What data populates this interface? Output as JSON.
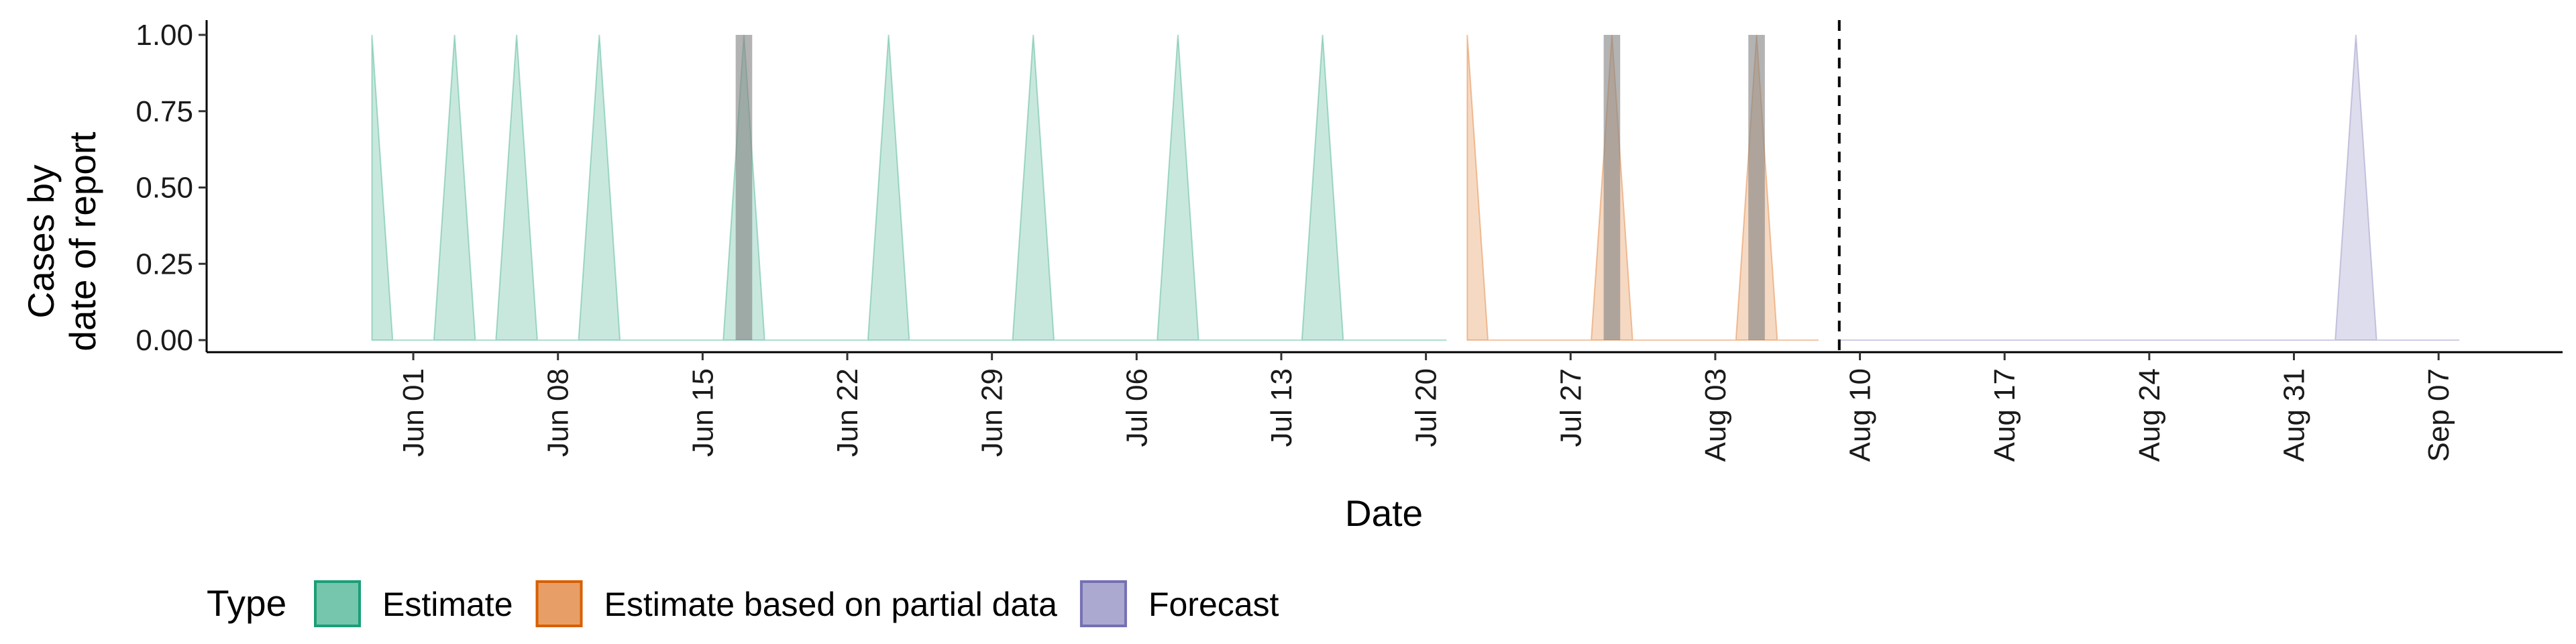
{
  "chart_data": {
    "type": "area",
    "xlabel": "Date",
    "ylabel_lines": [
      "Cases by",
      "date of report"
    ],
    "ylim": [
      0,
      1
    ],
    "y_ticks": [
      0,
      0.25,
      0.5,
      0.75,
      1
    ],
    "y_tick_labels": [
      "0.00",
      "0.25",
      "0.50",
      "0.75",
      "1.00"
    ],
    "xlim": [
      "2020-05-22",
      "2020-09-13"
    ],
    "x_ticks": [
      "2020-06-01",
      "2020-06-08",
      "2020-06-15",
      "2020-06-22",
      "2020-06-29",
      "2020-07-06",
      "2020-07-13",
      "2020-07-20",
      "2020-07-27",
      "2020-08-03",
      "2020-08-10",
      "2020-08-17",
      "2020-08-24",
      "2020-08-31",
      "2020-09-07"
    ],
    "x_tick_labels": [
      "Jun 01",
      "Jun 08",
      "Jun 15",
      "Jun 22",
      "Jun 29",
      "Jul 06",
      "Jul 13",
      "Jul 20",
      "Jul 27",
      "Aug 03",
      "Aug 10",
      "Aug 17",
      "Aug 24",
      "Aug 31",
      "Sep 07"
    ],
    "vline": "2020-08-09",
    "series": [
      {
        "name": "Estimate",
        "fill": "#1b9e77",
        "start": "2020-05-30",
        "end": "2020-07-21",
        "peaks": [
          "2020-05-30",
          "2020-06-03",
          "2020-06-06",
          "2020-06-10",
          "2020-06-17",
          "2020-06-24",
          "2020-07-01",
          "2020-07-08",
          "2020-07-15"
        ]
      },
      {
        "name": "Estimate based on partial data",
        "fill": "#d95f02",
        "start": "2020-07-22",
        "end": "2020-08-08",
        "peaks": [
          "2020-07-22",
          "2020-07-29",
          "2020-08-05"
        ]
      },
      {
        "name": "Forecast",
        "fill": "#7570b3",
        "start": "2020-08-09",
        "end": "2020-09-08",
        "peaks": [
          "2020-09-03"
        ]
      }
    ],
    "observed_cases": [
      {
        "date": "2020-06-17",
        "value": 1
      },
      {
        "date": "2020-07-29",
        "value": 1
      },
      {
        "date": "2020-08-05",
        "value": 1
      }
    ],
    "legend": {
      "title": "Type",
      "position": "bottom",
      "items": [
        {
          "label": "Estimate",
          "fill": "#1b9e77"
        },
        {
          "label": "Estimate based on partial data",
          "fill": "#d95f02"
        },
        {
          "label": "Forecast",
          "fill": "#7570b3"
        }
      ]
    }
  }
}
